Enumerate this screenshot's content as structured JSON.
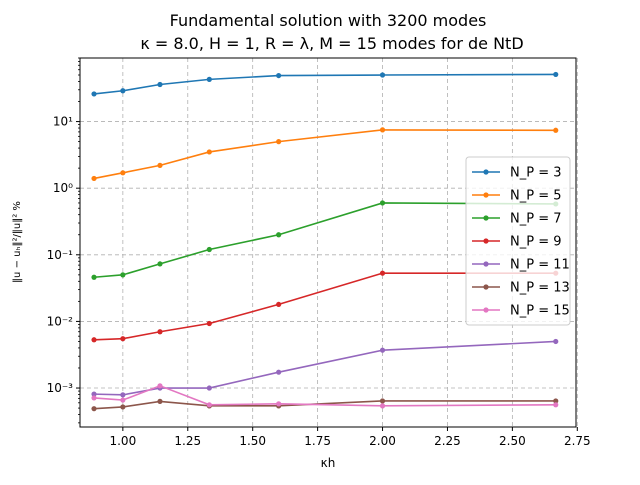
{
  "chart_data": {
    "type": "line",
    "title_line1": "Fundamental solution with 3200 modes",
    "title_line2": "κ = 8.0, H = 1, R = λ, M = 15 modes for de NtD",
    "xlabel": "κh",
    "ylabel": "‖u − uₕ‖²/‖u‖² %",
    "y_scale": "log",
    "xlim": [
      0.835,
      2.745
    ],
    "ylim": [
      0.00026,
      90
    ],
    "grid": true,
    "legend_position": "center-right",
    "x_ticks": [
      1.0,
      1.25,
      1.5,
      1.75,
      2.0,
      2.25,
      2.5,
      2.75
    ],
    "x_tick_labels": [
      "1.00",
      "1.25",
      "1.50",
      "1.75",
      "2.00",
      "2.25",
      "2.50",
      "2.75"
    ],
    "y_ticks": [
      0.001,
      0.01,
      0.1,
      1,
      10
    ],
    "y_tick_labels": [
      "10⁻³",
      "10⁻²",
      "10⁻¹",
      "10⁰",
      "10¹"
    ],
    "x": [
      0.889,
      1.0,
      1.143,
      1.333,
      1.6,
      2.0,
      2.667
    ],
    "series": [
      {
        "name": "N_P = 3",
        "color": "#1f77b4",
        "values": [
          26,
          29,
          36,
          43,
          49,
          50,
          51
        ]
      },
      {
        "name": "N_P = 5",
        "color": "#ff7f0e",
        "values": [
          1.4,
          1.7,
          2.2,
          3.5,
          5.0,
          7.5,
          7.4
        ]
      },
      {
        "name": "N_P = 7",
        "color": "#2ca02c",
        "values": [
          0.046,
          0.05,
          0.073,
          0.12,
          0.2,
          0.6,
          0.58
        ]
      },
      {
        "name": "N_P = 9",
        "color": "#d62728",
        "values": [
          0.0053,
          0.0055,
          0.007,
          0.0093,
          0.018,
          0.053,
          0.053
        ]
      },
      {
        "name": "N_P = 11",
        "color": "#9467bd",
        "values": [
          0.00081,
          0.00079,
          0.001,
          0.001,
          0.00173,
          0.0037,
          0.005
        ]
      },
      {
        "name": "N_P = 13",
        "color": "#8c564b",
        "values": [
          0.00049,
          0.00052,
          0.00063,
          0.00054,
          0.00054,
          0.00064,
          0.00064
        ]
      },
      {
        "name": "N_P = 15",
        "color": "#e377c2",
        "values": [
          0.00071,
          0.00066,
          0.00108,
          0.00056,
          0.00058,
          0.00054,
          0.00056
        ]
      }
    ]
  }
}
